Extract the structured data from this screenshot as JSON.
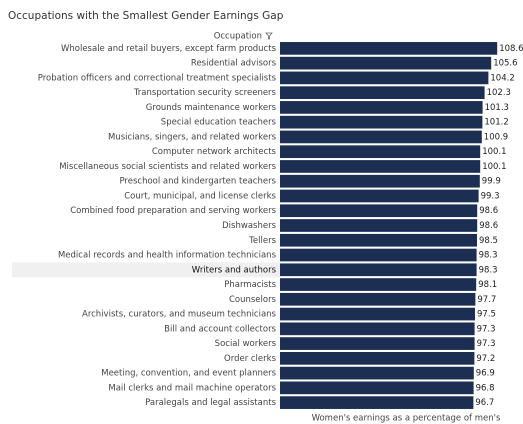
{
  "chart_data": {
    "type": "bar",
    "orientation": "horizontal",
    "title": "Occupations with the Smallest Gender Earnings Gap",
    "y_header": "Occupation",
    "x_label": "Women's earnings as a percentage of men's",
    "categories": [
      "Wholesale and retail buyers, except farm products",
      "Residential advisors",
      "Probation officers and correctional treatment specialists",
      "Transportation security screeners",
      "Grounds maintenance workers",
      "Special education teachers",
      "Musicians, singers, and related workers",
      "Computer network architects",
      "Miscellaneous social scientists and related workers",
      "Preschool and kindergarten teachers",
      "Court, municipal, and license clerks",
      "Combined food preparation and serving workers",
      "Dishwashers",
      "Tellers",
      "Medical records and health information technicians",
      "Writers and authors",
      "Pharmacists",
      "Counselors",
      "Archivists, curators, and museum technicians",
      "Bill and account collectors",
      "Social workers",
      "Order clerks",
      "Meeting, convention, and event planners",
      "Mail clerks and mail machine operators",
      "Paralegals and legal assistants"
    ],
    "values": [
      108.6,
      105.6,
      104.2,
      102.3,
      101.3,
      101.2,
      100.9,
      100.1,
      100.1,
      99.9,
      99.3,
      98.6,
      98.6,
      98.5,
      98.3,
      98.3,
      98.1,
      97.7,
      97.5,
      97.3,
      97.3,
      97.2,
      96.9,
      96.8,
      96.7
    ],
    "color": "#1c2f52",
    "xlim": [
      0,
      110
    ],
    "highlight": 15
  }
}
